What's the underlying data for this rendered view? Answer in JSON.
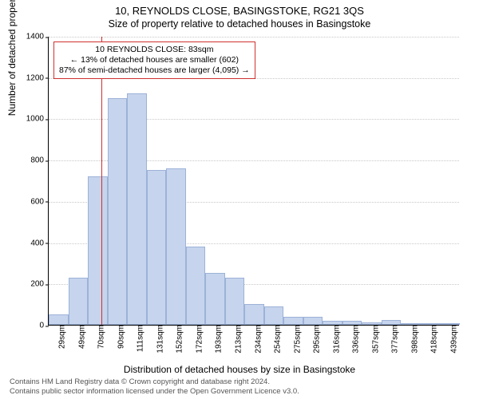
{
  "address_title": "10, REYNOLDS CLOSE, BASINGSTOKE, RG21 3QS",
  "subtitle": "Size of property relative to detached houses in Basingstoke",
  "y_axis_label": "Number of detached properties",
  "x_axis_label": "Distribution of detached houses by size in Basingstoke",
  "footnote_line1": "Contains HM Land Registry data © Crown copyright and database right 2024.",
  "footnote_line2": "Contains public sector information licensed under the Open Government Licence v3.0.",
  "chart": {
    "type": "histogram",
    "background_color": "#ffffff",
    "grid_color": "#c8c8c8",
    "axis_color": "#000000",
    "bar_fill": "#c6d4ed",
    "bar_border": "#9db2d8",
    "reference_line_color": "#d03030",
    "ylim_max": 1400,
    "y_ticks": [
      0,
      200,
      400,
      600,
      800,
      1000,
      1200,
      1400
    ],
    "x_tick_labels": [
      "29sqm",
      "49sqm",
      "70sqm",
      "90sqm",
      "111sqm",
      "131sqm",
      "152sqm",
      "172sqm",
      "193sqm",
      "213sqm",
      "234sqm",
      "254sqm",
      "275sqm",
      "295sqm",
      "316sqm",
      "336sqm",
      "357sqm",
      "377sqm",
      "398sqm",
      "418sqm",
      "439sqm"
    ],
    "bar_values": [
      50,
      230,
      720,
      1100,
      1120,
      750,
      760,
      380,
      250,
      230,
      100,
      90,
      40,
      40,
      20,
      20,
      10,
      25,
      0,
      0,
      5
    ],
    "reference_value_sqm": 83,
    "reference_x_range_sqm": [
      29,
      449
    ],
    "callout": {
      "line1": "10 REYNOLDS CLOSE: 83sqm",
      "line2": "← 13% of detached houses are smaller (602)",
      "line3": "87% of semi-detached houses are larger (4,095) →"
    },
    "title_fontsize_pt": 13,
    "subtitle_fontsize_pt": 12.5,
    "axis_label_fontsize_pt": 12,
    "tick_fontsize_pt": 10,
    "callout_fontsize_pt": 10.5,
    "footnote_fontsize_pt": 9.5
  }
}
